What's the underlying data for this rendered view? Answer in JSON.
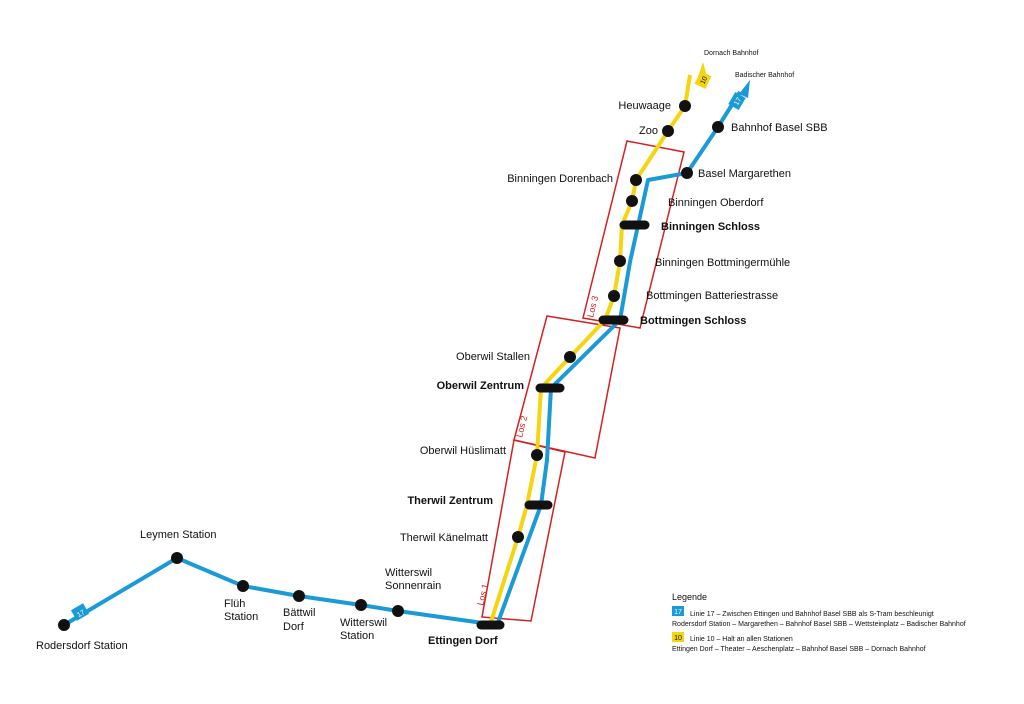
{
  "destinations": [
    "Dornach Bahnhof",
    "Badischer Bahnhof"
  ],
  "lines": [
    {
      "badge": "17"
    },
    {
      "badge": "10"
    }
  ],
  "stations": [
    {
      "label": [
        "Rodersdorf Station"
      ]
    },
    {
      "label": [
        "Leymen Station"
      ]
    },
    {
      "label": [
        "Flüh",
        "Station"
      ]
    },
    {
      "label": [
        "Bättwil",
        "Dorf"
      ]
    },
    {
      "label": [
        "Witterswil",
        "Station"
      ]
    },
    {
      "label": [
        "Witterswil",
        "Sonnenrain"
      ]
    },
    {
      "label": [
        "Ettingen Dorf"
      ]
    },
    {
      "label": [
        "Therwil Känelmatt"
      ]
    },
    {
      "label": [
        "Therwil Zentrum"
      ]
    },
    {
      "label": [
        "Oberwil Hüslimatt"
      ]
    },
    {
      "label": [
        "Oberwil Zentrum"
      ]
    },
    {
      "label": [
        "Oberwil Stallen"
      ]
    },
    {
      "label": [
        "Bottmingen Schloss"
      ]
    },
    {
      "label": [
        "Bottmingen Batteriestrasse"
      ]
    },
    {
      "label": [
        "Binningen Bottmingermühle"
      ]
    },
    {
      "label": [
        "Binningen Schloss"
      ]
    },
    {
      "label": [
        "Binningen Oberdorf"
      ]
    },
    {
      "label": [
        "Binningen Dorenbach"
      ]
    },
    {
      "label": [
        "Basel Margarethen"
      ]
    },
    {
      "label": [
        "Bahnhof Basel SBB"
      ]
    },
    {
      "label": [
        "Zoo"
      ]
    },
    {
      "label": [
        "Heuwaage"
      ]
    }
  ],
  "sections": [
    "Los 1",
    "Los 2",
    "Los 3"
  ],
  "legend": {
    "title": "Legende",
    "items": [
      {
        "badge": "17",
        "line1": "Linie 17 – Zwischen Ettingen und Bahnhof Basel SBB als S-Tram beschleunigt",
        "line2": "Rodersdorf Station – Margarethen – Bahnhof Basel SBB – Wettsteinplatz – Badischer Bahnhof"
      },
      {
        "badge": "10",
        "line1": "Linie 10 – Halt an allen Stationen",
        "line2": "Ettingen Dorf – Theater – Aeschenplatz – Bahnhof Basel SBB – Dornach Bahnhof"
      }
    ]
  }
}
